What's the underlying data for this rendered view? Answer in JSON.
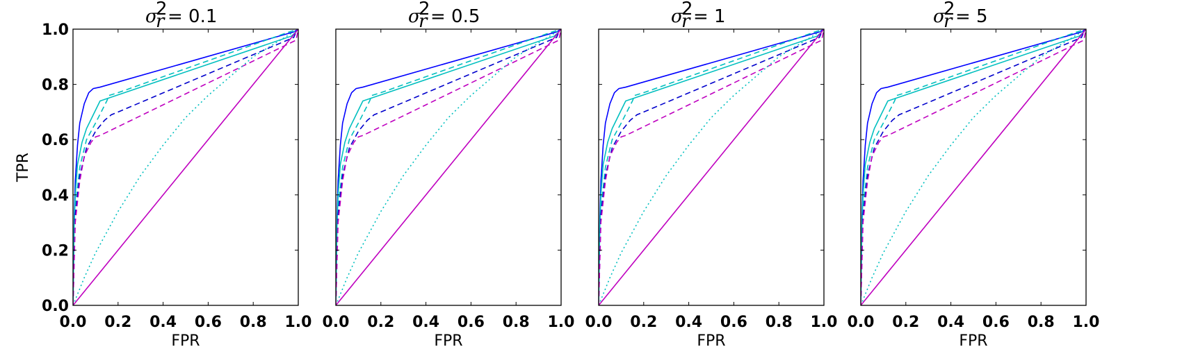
{
  "chart_data": [
    {
      "type": "line",
      "title": "σ_r^2 = 0.1",
      "title_parts": {
        "var": "σ",
        "sup": "2",
        "sub": "r",
        "value": "0.1"
      },
      "xlabel": "FPR",
      "ylabel": "TPR",
      "xlim": [
        0,
        1
      ],
      "ylim": [
        0,
        1
      ],
      "xticks": [
        "0.0",
        "0.2",
        "0.4",
        "0.6",
        "0.8",
        "1.0"
      ],
      "yticks": [
        "0.0",
        "0.2",
        "0.4",
        "0.6",
        "0.8",
        "1.0"
      ],
      "grid": false,
      "series": [
        {
          "color": "#0000ff",
          "dash": "solid",
          "x": [
            0,
            0.005,
            0.01,
            0.02,
            0.03,
            0.05,
            0.07,
            0.09,
            0.12,
            0.98,
            1.0
          ],
          "y": [
            0,
            0.3,
            0.45,
            0.58,
            0.66,
            0.73,
            0.77,
            0.785,
            0.79,
            0.99,
            1.0
          ]
        },
        {
          "color": "#00bfbf",
          "dash": "solid",
          "x": [
            0,
            0.005,
            0.01,
            0.02,
            0.04,
            0.06,
            0.09,
            0.12,
            0.97,
            0.99,
            1.0
          ],
          "y": [
            0,
            0.28,
            0.4,
            0.51,
            0.59,
            0.64,
            0.69,
            0.74,
            0.975,
            0.99,
            1.0
          ]
        },
        {
          "color": "#00bfbf",
          "dash": "dashed",
          "x": [
            0,
            0.01,
            0.03,
            0.06,
            0.1,
            0.15,
            0.16,
            0.2,
            0.96,
            1.0
          ],
          "y": [
            0,
            0.35,
            0.5,
            0.6,
            0.66,
            0.74,
            0.76,
            0.77,
            0.99,
            1.0
          ]
        },
        {
          "color": "#0000cc",
          "dash": "dashed",
          "x": [
            0,
            0.01,
            0.03,
            0.06,
            0.1,
            0.14,
            0.17,
            0.2,
            0.98,
            0.99,
            1.0
          ],
          "y": [
            0,
            0.33,
            0.47,
            0.57,
            0.63,
            0.67,
            0.69,
            0.7,
            0.97,
            0.99,
            1.0
          ]
        },
        {
          "color": "#bf00bf",
          "dash": "dashed",
          "x": [
            0,
            0.01,
            0.03,
            0.05,
            0.08,
            0.1,
            0.12,
            0.99,
            1.0
          ],
          "y": [
            0,
            0.3,
            0.45,
            0.54,
            0.59,
            0.61,
            0.615,
            0.96,
            1.0
          ]
        },
        {
          "color": "#00bfbf",
          "dash": "dotted",
          "x": [
            0,
            0.05,
            0.1,
            0.2,
            0.3,
            0.4,
            0.5,
            0.6,
            0.7,
            0.8,
            0.9,
            1.0
          ],
          "y": [
            0,
            0.1,
            0.19,
            0.34,
            0.47,
            0.58,
            0.68,
            0.76,
            0.83,
            0.9,
            0.95,
            1.0
          ]
        },
        {
          "color": "#bf00bf",
          "dash": "solid",
          "x": [
            0,
            1.0
          ],
          "y": [
            0,
            1.0
          ]
        }
      ]
    },
    {
      "type": "line",
      "title": "σ_r^2 = 0.5",
      "title_parts": {
        "var": "σ",
        "sup": "2",
        "sub": "r",
        "value": "0.5"
      },
      "xlabel": "FPR",
      "ylabel": "",
      "xlim": [
        0,
        1
      ],
      "ylim": [
        0,
        1
      ],
      "xticks": [
        "0.0",
        "0.2",
        "0.4",
        "0.6",
        "0.8",
        "1.0"
      ],
      "yticks": [],
      "grid": false,
      "series": [
        {
          "color": "#0000ff",
          "dash": "solid",
          "x": [
            0,
            0.005,
            0.01,
            0.02,
            0.03,
            0.05,
            0.07,
            0.09,
            0.12,
            0.98,
            1.0
          ],
          "y": [
            0,
            0.3,
            0.45,
            0.58,
            0.66,
            0.73,
            0.77,
            0.785,
            0.79,
            0.99,
            1.0
          ]
        },
        {
          "color": "#00bfbf",
          "dash": "solid",
          "x": [
            0,
            0.005,
            0.01,
            0.02,
            0.04,
            0.06,
            0.09,
            0.12,
            0.97,
            0.99,
            1.0
          ],
          "y": [
            0,
            0.28,
            0.4,
            0.51,
            0.59,
            0.64,
            0.69,
            0.74,
            0.975,
            0.99,
            1.0
          ]
        },
        {
          "color": "#00bfbf",
          "dash": "dashed",
          "x": [
            0,
            0.01,
            0.03,
            0.06,
            0.1,
            0.15,
            0.16,
            0.2,
            0.96,
            1.0
          ],
          "y": [
            0,
            0.35,
            0.5,
            0.6,
            0.66,
            0.74,
            0.76,
            0.77,
            0.99,
            1.0
          ]
        },
        {
          "color": "#0000cc",
          "dash": "dashed",
          "x": [
            0,
            0.01,
            0.03,
            0.06,
            0.1,
            0.14,
            0.17,
            0.2,
            0.98,
            0.99,
            1.0
          ],
          "y": [
            0,
            0.33,
            0.47,
            0.57,
            0.63,
            0.67,
            0.69,
            0.7,
            0.97,
            0.99,
            1.0
          ]
        },
        {
          "color": "#bf00bf",
          "dash": "dashed",
          "x": [
            0,
            0.01,
            0.03,
            0.05,
            0.08,
            0.1,
            0.12,
            0.99,
            1.0
          ],
          "y": [
            0,
            0.3,
            0.45,
            0.54,
            0.59,
            0.61,
            0.615,
            0.96,
            1.0
          ]
        },
        {
          "color": "#00bfbf",
          "dash": "dotted",
          "x": [
            0,
            0.05,
            0.1,
            0.2,
            0.3,
            0.4,
            0.5,
            0.6,
            0.7,
            0.8,
            0.9,
            1.0
          ],
          "y": [
            0,
            0.1,
            0.19,
            0.34,
            0.47,
            0.58,
            0.68,
            0.76,
            0.83,
            0.9,
            0.95,
            1.0
          ]
        },
        {
          "color": "#bf00bf",
          "dash": "solid",
          "x": [
            0,
            1.0
          ],
          "y": [
            0,
            1.0
          ]
        }
      ]
    },
    {
      "type": "line",
      "title": "σ_r^2 = 1",
      "title_parts": {
        "var": "σ",
        "sup": "2",
        "sub": "r",
        "value": "1"
      },
      "xlabel": "FPR",
      "ylabel": "",
      "xlim": [
        0,
        1
      ],
      "ylim": [
        0,
        1
      ],
      "xticks": [
        "0.0",
        "0.2",
        "0.4",
        "0.6",
        "0.8",
        "1.0"
      ],
      "yticks": [],
      "grid": false,
      "series": [
        {
          "color": "#0000ff",
          "dash": "solid",
          "x": [
            0,
            0.005,
            0.01,
            0.02,
            0.03,
            0.05,
            0.07,
            0.09,
            0.12,
            0.98,
            1.0
          ],
          "y": [
            0,
            0.3,
            0.45,
            0.58,
            0.66,
            0.73,
            0.77,
            0.785,
            0.79,
            0.99,
            1.0
          ]
        },
        {
          "color": "#00bfbf",
          "dash": "solid",
          "x": [
            0,
            0.005,
            0.01,
            0.02,
            0.04,
            0.06,
            0.09,
            0.12,
            0.97,
            0.99,
            1.0
          ],
          "y": [
            0,
            0.28,
            0.4,
            0.51,
            0.59,
            0.64,
            0.69,
            0.74,
            0.975,
            0.99,
            1.0
          ]
        },
        {
          "color": "#00bfbf",
          "dash": "dashed",
          "x": [
            0,
            0.01,
            0.03,
            0.06,
            0.1,
            0.15,
            0.16,
            0.2,
            0.96,
            1.0
          ],
          "y": [
            0,
            0.35,
            0.5,
            0.6,
            0.66,
            0.74,
            0.76,
            0.77,
            0.99,
            1.0
          ]
        },
        {
          "color": "#0000cc",
          "dash": "dashed",
          "x": [
            0,
            0.01,
            0.03,
            0.06,
            0.1,
            0.14,
            0.17,
            0.2,
            0.98,
            0.99,
            1.0
          ],
          "y": [
            0,
            0.33,
            0.47,
            0.57,
            0.63,
            0.67,
            0.69,
            0.7,
            0.97,
            0.99,
            1.0
          ]
        },
        {
          "color": "#bf00bf",
          "dash": "dashed",
          "x": [
            0,
            0.01,
            0.03,
            0.05,
            0.08,
            0.1,
            0.12,
            0.99,
            1.0
          ],
          "y": [
            0,
            0.3,
            0.45,
            0.54,
            0.59,
            0.61,
            0.615,
            0.96,
            1.0
          ]
        },
        {
          "color": "#00bfbf",
          "dash": "dotted",
          "x": [
            0,
            0.05,
            0.1,
            0.2,
            0.3,
            0.4,
            0.5,
            0.6,
            0.7,
            0.8,
            0.9,
            1.0
          ],
          "y": [
            0,
            0.1,
            0.19,
            0.34,
            0.47,
            0.58,
            0.68,
            0.76,
            0.83,
            0.9,
            0.95,
            1.0
          ]
        },
        {
          "color": "#bf00bf",
          "dash": "solid",
          "x": [
            0,
            1.0
          ],
          "y": [
            0,
            1.0
          ]
        }
      ]
    },
    {
      "type": "line",
      "title": "σ_r^2 = 5",
      "title_parts": {
        "var": "σ",
        "sup": "2",
        "sub": "r",
        "value": "5"
      },
      "xlabel": "FPR",
      "ylabel": "",
      "xlim": [
        0,
        1
      ],
      "ylim": [
        0,
        1
      ],
      "xticks": [
        "0.0",
        "0.2",
        "0.4",
        "0.6",
        "0.8",
        "1.0"
      ],
      "yticks": [],
      "grid": false,
      "series": [
        {
          "color": "#0000ff",
          "dash": "solid",
          "x": [
            0,
            0.005,
            0.01,
            0.02,
            0.03,
            0.05,
            0.07,
            0.09,
            0.12,
            0.98,
            1.0
          ],
          "y": [
            0,
            0.3,
            0.45,
            0.58,
            0.66,
            0.73,
            0.77,
            0.785,
            0.79,
            0.99,
            1.0
          ]
        },
        {
          "color": "#00bfbf",
          "dash": "solid",
          "x": [
            0,
            0.005,
            0.01,
            0.02,
            0.04,
            0.06,
            0.09,
            0.12,
            0.97,
            0.99,
            1.0
          ],
          "y": [
            0,
            0.28,
            0.4,
            0.51,
            0.59,
            0.64,
            0.69,
            0.74,
            0.975,
            0.99,
            1.0
          ]
        },
        {
          "color": "#00bfbf",
          "dash": "dashed",
          "x": [
            0,
            0.01,
            0.03,
            0.06,
            0.1,
            0.15,
            0.16,
            0.2,
            0.96,
            1.0
          ],
          "y": [
            0,
            0.35,
            0.5,
            0.6,
            0.66,
            0.74,
            0.76,
            0.77,
            0.99,
            1.0
          ]
        },
        {
          "color": "#0000cc",
          "dash": "dashed",
          "x": [
            0,
            0.01,
            0.03,
            0.06,
            0.1,
            0.14,
            0.17,
            0.2,
            0.98,
            0.99,
            1.0
          ],
          "y": [
            0,
            0.33,
            0.47,
            0.57,
            0.63,
            0.67,
            0.69,
            0.7,
            0.97,
            0.99,
            1.0
          ]
        },
        {
          "color": "#bf00bf",
          "dash": "dashed",
          "x": [
            0,
            0.01,
            0.03,
            0.05,
            0.08,
            0.1,
            0.12,
            0.99,
            1.0
          ],
          "y": [
            0,
            0.3,
            0.45,
            0.54,
            0.59,
            0.61,
            0.615,
            0.96,
            1.0
          ]
        },
        {
          "color": "#00bfbf",
          "dash": "dotted",
          "x": [
            0,
            0.05,
            0.1,
            0.2,
            0.3,
            0.4,
            0.5,
            0.6,
            0.7,
            0.8,
            0.9,
            1.0
          ],
          "y": [
            0,
            0.1,
            0.19,
            0.34,
            0.47,
            0.58,
            0.68,
            0.76,
            0.83,
            0.9,
            0.95,
            1.0
          ]
        },
        {
          "color": "#bf00bf",
          "dash": "solid",
          "x": [
            0,
            1.0
          ],
          "y": [
            0,
            1.0
          ]
        }
      ]
    }
  ]
}
